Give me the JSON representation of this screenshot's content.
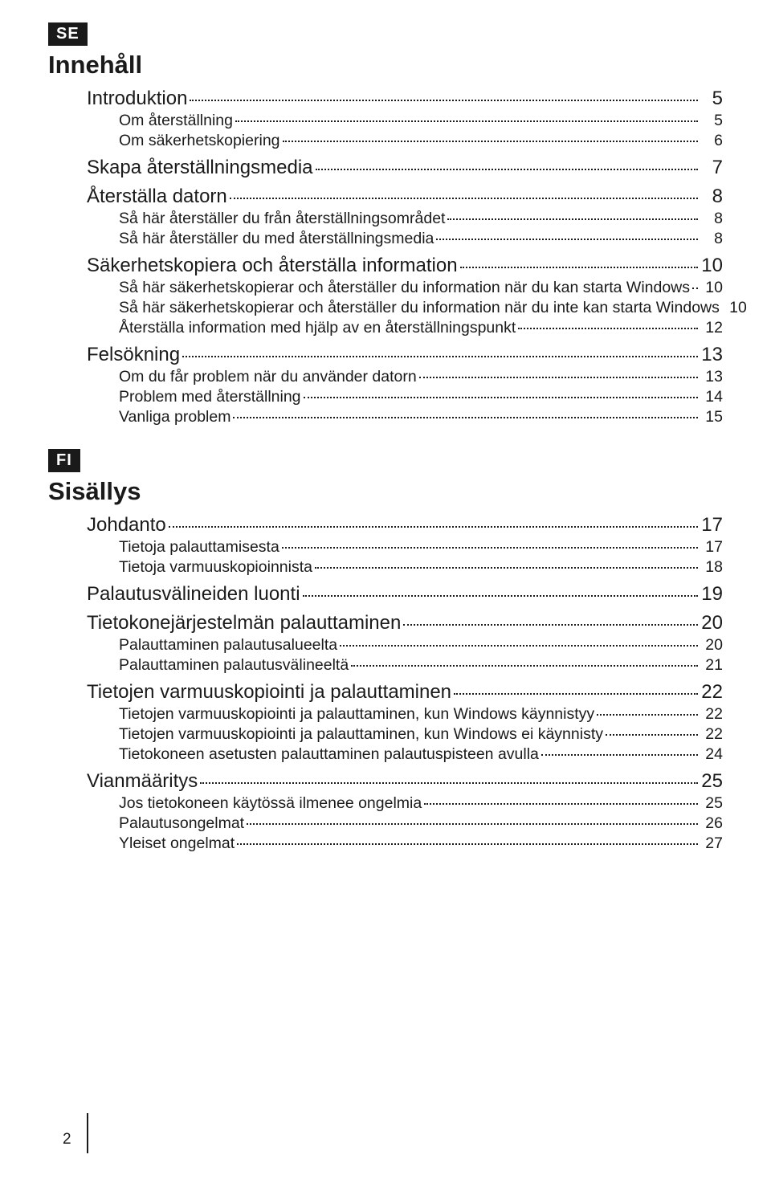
{
  "colors": {
    "badge_bg": "#1a1a1a",
    "badge_fg": "#ffffff",
    "text": "#1a1a1a",
    "page_bg": "#ffffff"
  },
  "typography": {
    "body_font": "Arial",
    "section_title_pt": 23,
    "h1_pt": 18,
    "h2_pt": 15,
    "badge_pt": 15
  },
  "page_number": "2",
  "se": {
    "lang": "SE",
    "heading": "Innehåll",
    "items": [
      {
        "level": 1,
        "label": "Introduktion",
        "page": "5"
      },
      {
        "level": 2,
        "label": "Om återställning",
        "page": "5"
      },
      {
        "level": 2,
        "label": "Om säkerhetskopiering",
        "page": "6"
      },
      {
        "level": 1,
        "label": "Skapa återställningsmedia",
        "page": "7"
      },
      {
        "level": 1,
        "label": "Återställa datorn",
        "page": "8"
      },
      {
        "level": 2,
        "label": "Så här återställer du från återställningsområdet",
        "page": "8"
      },
      {
        "level": 2,
        "label": "Så här återställer du med återställningsmedia",
        "page": "8"
      },
      {
        "level": 1,
        "label": "Säkerhetskopiera och återställa information",
        "page": "10"
      },
      {
        "level": 2,
        "label": "Så här säkerhetskopierar och återställer du information när du kan starta Windows",
        "page": "10"
      },
      {
        "level": 2,
        "label": "Så här säkerhetskopierar och återställer du information när du inte kan starta Windows",
        "page": "10"
      },
      {
        "level": 2,
        "label": "Återställa information med hjälp av en återställningspunkt",
        "page": "12"
      },
      {
        "level": 1,
        "label": "Felsökning",
        "page": "13"
      },
      {
        "level": 2,
        "label": "Om du får problem när du använder datorn",
        "page": "13"
      },
      {
        "level": 2,
        "label": "Problem med återställning",
        "page": "14"
      },
      {
        "level": 2,
        "label": "Vanliga problem",
        "page": "15"
      }
    ]
  },
  "fi": {
    "lang": "FI",
    "heading": "Sisällys",
    "items": [
      {
        "level": 1,
        "label": "Johdanto",
        "page": "17"
      },
      {
        "level": 2,
        "label": "Tietoja palauttamisesta",
        "page": "17"
      },
      {
        "level": 2,
        "label": "Tietoja varmuuskopioinnista",
        "page": "18"
      },
      {
        "level": 1,
        "label": "Palautusvälineiden luonti",
        "page": "19"
      },
      {
        "level": 1,
        "label": "Tietokonejärjestelmän palauttaminen",
        "page": "20"
      },
      {
        "level": 2,
        "label": "Palauttaminen palautusalueelta",
        "page": "20"
      },
      {
        "level": 2,
        "label": "Palauttaminen palautusvälineeltä",
        "page": "21"
      },
      {
        "level": 1,
        "label": "Tietojen varmuuskopiointi ja palauttaminen",
        "page": "22"
      },
      {
        "level": 2,
        "label": "Tietojen varmuuskopiointi ja palauttaminen, kun Windows käynnistyy",
        "page": "22"
      },
      {
        "level": 2,
        "label": "Tietojen varmuuskopiointi ja palauttaminen, kun Windows ei käynnisty",
        "page": "22"
      },
      {
        "level": 2,
        "label": "Tietokoneen asetusten palauttaminen palautuspisteen avulla",
        "page": "24"
      },
      {
        "level": 1,
        "label": "Vianmääritys",
        "page": "25"
      },
      {
        "level": 2,
        "label": "Jos tietokoneen käytössä ilmenee ongelmia",
        "page": "25"
      },
      {
        "level": 2,
        "label": "Palautusongelmat",
        "page": "26"
      },
      {
        "level": 2,
        "label": "Yleiset ongelmat",
        "page": "27"
      }
    ]
  }
}
